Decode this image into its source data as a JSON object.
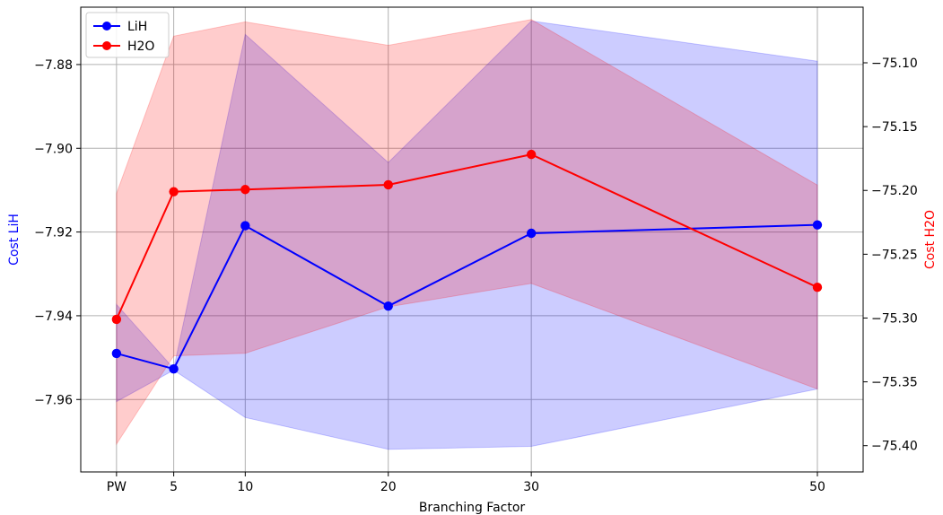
{
  "chart_data": {
    "type": "line",
    "xlabel": "Branching Factor",
    "x": [
      1,
      5,
      10,
      20,
      30,
      50
    ],
    "x_tick_labels": [
      "PW",
      "5",
      "10",
      "20",
      "30",
      "50"
    ],
    "xlim": [
      -1.5,
      53.2
    ],
    "grid": true,
    "legend_position": "top-left",
    "axes": {
      "left": {
        "label": "Cost LiH",
        "color": "#0000ff",
        "lim": [
          -7.9773,
          -7.8663
        ],
        "ticks": [
          -7.88,
          -7.9,
          -7.92,
          -7.94,
          -7.96
        ],
        "tick_labels": [
          "−7.88",
          "−7.90",
          "−7.92",
          "−7.94",
          "−7.96"
        ]
      },
      "right": {
        "label": "Cost H2O",
        "color": "#ff0000",
        "lim": [
          -75.4206,
          -75.0564
        ],
        "ticks": [
          -75.1,
          -75.15,
          -75.2,
          -75.25,
          -75.3,
          -75.35,
          -75.4
        ],
        "tick_labels": [
          "−75.10",
          "−75.15",
          "−75.20",
          "−75.25",
          "−75.30",
          "−75.35",
          "−75.40"
        ]
      }
    },
    "series": [
      {
        "name": "LiH",
        "axis": "left",
        "color": "#0000ff",
        "band_color": "#0000ff",
        "values": [
          -7.949,
          -7.9527,
          -7.9185,
          -7.9377,
          -7.9203,
          -7.9183
        ],
        "lower": [
          -7.9605,
          -7.953,
          -7.9643,
          -7.9719,
          -7.9712,
          -7.9575
        ],
        "upper": [
          -7.9373,
          -7.9526,
          -7.8728,
          -7.9034,
          -7.8696,
          -7.8792
        ]
      },
      {
        "name": "H2O",
        "axis": "right",
        "color": "#ff0000",
        "band_color": "#ff0000",
        "values": [
          -75.301,
          -75.201,
          -75.1993,
          -75.1956,
          -75.1718,
          -75.2759
        ],
        "lower": [
          -75.3988,
          -75.3296,
          -75.3276,
          -75.2912,
          -75.2729,
          -75.3556
        ],
        "upper": [
          -75.2024,
          -75.0791,
          -75.0679,
          -75.0863,
          -75.0661,
          -75.1958
        ]
      }
    ]
  }
}
